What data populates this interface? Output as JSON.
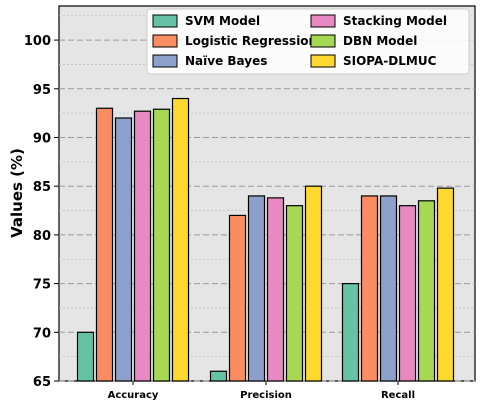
{
  "chart_data": {
    "type": "bar",
    "categories": [
      "Accuracy",
      "Precision",
      "Recall"
    ],
    "ylabel": "Values (%)",
    "xlabel": "",
    "ylim": [
      65,
      103.5
    ],
    "yticks": [
      65,
      70,
      75,
      80,
      85,
      90,
      95,
      100
    ],
    "grid": true,
    "legend_position": "top-right",
    "series": [
      {
        "name": "SVM Model",
        "color": "#66c2a5",
        "values": [
          70,
          66,
          75
        ]
      },
      {
        "name": "Logistic Regression",
        "color": "#fc8d62",
        "values": [
          93,
          82,
          84
        ]
      },
      {
        "name": "Naïve Bayes",
        "color": "#8da0cb",
        "values": [
          92,
          84,
          84
        ]
      },
      {
        "name": "Stacking Model",
        "color": "#e78ac3",
        "values": [
          92.7,
          83.8,
          83
        ]
      },
      {
        "name": "DBN Model",
        "color": "#a6d854",
        "values": [
          92.9,
          83,
          83.5
        ]
      },
      {
        "name": "SIOPA-DLMUC",
        "color": "#ffd92f",
        "values": [
          94,
          85,
          84.8
        ]
      }
    ]
  }
}
